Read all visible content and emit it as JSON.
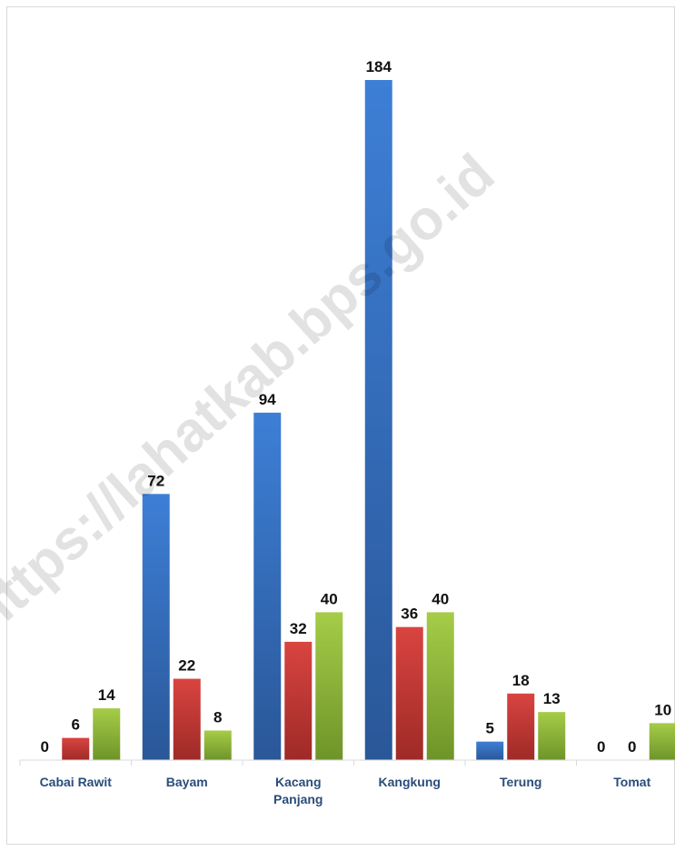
{
  "chart_data": {
    "type": "bar",
    "title": "",
    "xlabel": "",
    "ylabel": "",
    "ylim": [
      0,
      184
    ],
    "grid": false,
    "legend": "none",
    "categories": [
      "Cabai Rawit",
      "Bayam",
      "Kacang Panjang",
      "Kangkung",
      "Terung",
      "Tomat"
    ],
    "series": [
      {
        "values": [
          0,
          72,
          94,
          184,
          5,
          0
        ],
        "color_top": "#3d7fd6",
        "color_bottom": "#2a5798"
      },
      {
        "values": [
          6,
          22,
          32,
          36,
          18,
          0
        ],
        "color_top": "#d94440",
        "color_bottom": "#9e2a27"
      },
      {
        "values": [
          14,
          8,
          40,
          40,
          13,
          10
        ],
        "color_top": "#a6cc48",
        "color_bottom": "#6e9429"
      }
    ],
    "annotations": {
      "watermark": "https://lahatkab.bps.go.id"
    }
  }
}
